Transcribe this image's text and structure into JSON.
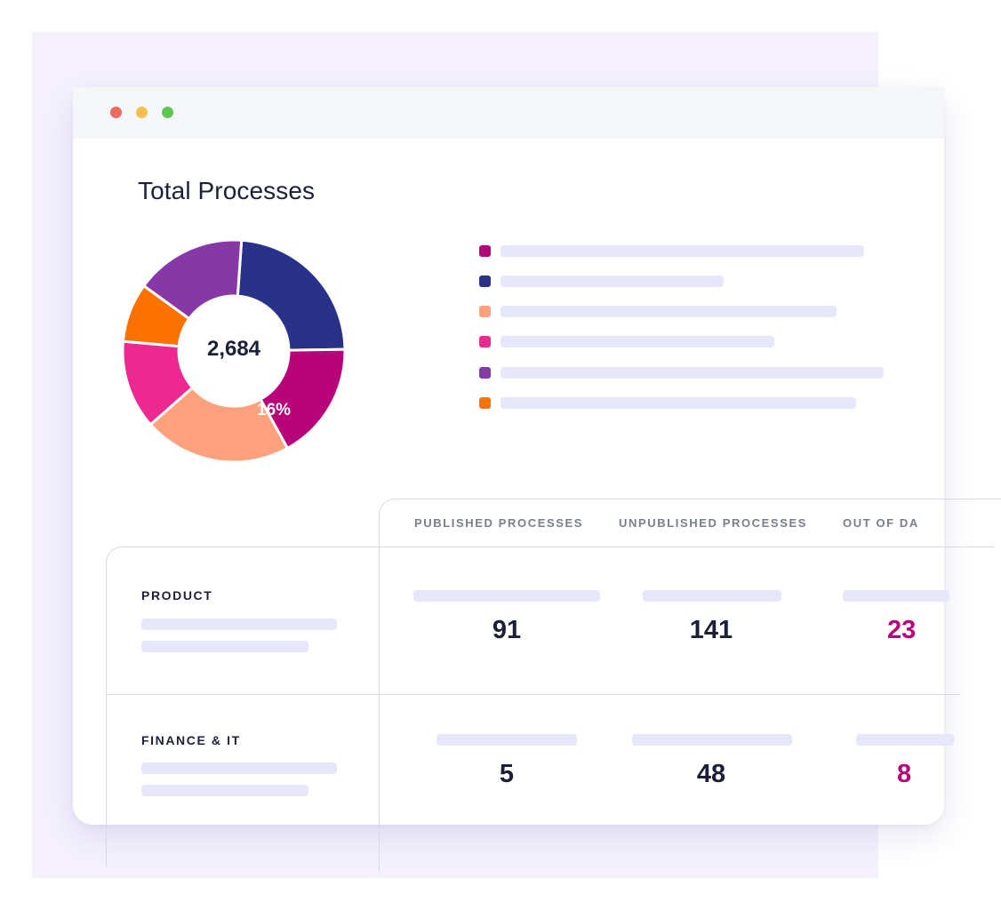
{
  "colors": {
    "backdrop": "#f4f1fd",
    "window_dot_red": "#ec6a5e",
    "window_dot_yellow": "#f5bf4f",
    "window_dot_green": "#61c554",
    "accent": "#b8037a",
    "placeholder_bar": "#e6e7fb"
  },
  "panel": {
    "title": "Total Processes"
  },
  "donut": {
    "total": "2,684",
    "highlight_label": "16%",
    "segments": [
      {
        "color": "#283288",
        "share": 0.22
      },
      {
        "color": "#b8037a",
        "share": 0.16
      },
      {
        "color": "#fea17c",
        "share": 0.2
      },
      {
        "color": "#ed2891",
        "share": 0.12
      },
      {
        "color": "#fc7200",
        "share": 0.08
      },
      {
        "color": "#8538a6",
        "share": 0.15
      }
    ]
  },
  "legend": {
    "items": [
      {
        "color": "#b8037a",
        "bar_fraction": 0.93
      },
      {
        "color": "#283288",
        "bar_fraction": 0.57
      },
      {
        "color": "#fea17c",
        "bar_fraction": 0.86
      },
      {
        "color": "#ed2891",
        "bar_fraction": 0.7
      },
      {
        "color": "#8538a6",
        "bar_fraction": 0.98
      },
      {
        "color": "#fc7200",
        "bar_fraction": 0.91
      }
    ]
  },
  "table": {
    "columns": [
      "PUBLISHED PROCESSES",
      "UNPUBLISHED PROCESSES",
      "OUT OF DA"
    ],
    "rows": [
      {
        "label": "PRODUCT",
        "values": [
          "91",
          "141",
          "23"
        ]
      },
      {
        "label": "FINANCE & IT",
        "values": [
          "5",
          "48",
          "8"
        ]
      }
    ]
  }
}
